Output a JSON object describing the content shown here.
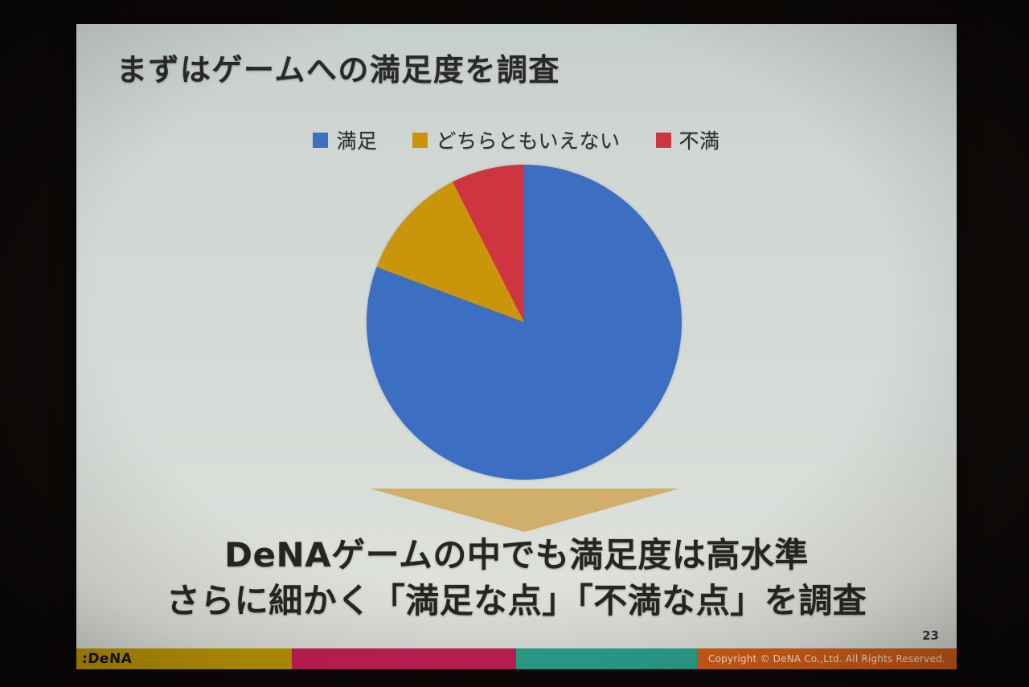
{
  "slide": {
    "title": "まずはゲームへの満足度を調査",
    "page_number": "23",
    "background_color": "#d4dad6"
  },
  "chart_data": {
    "type": "pie",
    "title": "まずはゲームへの満足度を調査",
    "legend_position": "top",
    "direction": "clockwise",
    "start_angle_deg": 0,
    "series": [
      {
        "label": "満足",
        "value": 80.7,
        "color": "#3c6fc2"
      },
      {
        "label": "どちらともいえない",
        "value": 11.8,
        "color": "#c8950b"
      },
      {
        "label": "不満",
        "value": 7.5,
        "color": "#ce3540"
      }
    ]
  },
  "arrow": {
    "direction": "down",
    "color": "#d0ae6b"
  },
  "conclusion": {
    "line1": "DeNAゲームの中でも満足度は高水準",
    "line2": "さらに細かく「満足な点」「不満な点」を調査"
  },
  "footer": {
    "logo": ":DeNA",
    "copyright": "Copyright © DeNA Co.,Ltd. All Rights Reserved.",
    "segments": [
      {
        "name": "yellow",
        "color": "#b99400",
        "width_pct": 24.5
      },
      {
        "name": "magenta",
        "color": "#c41e55",
        "width_pct": 25.5
      },
      {
        "name": "teal",
        "color": "#29a28c",
        "width_pct": 20.5
      },
      {
        "name": "orange",
        "color": "#cf5c16",
        "width_pct": 29.5
      }
    ]
  }
}
